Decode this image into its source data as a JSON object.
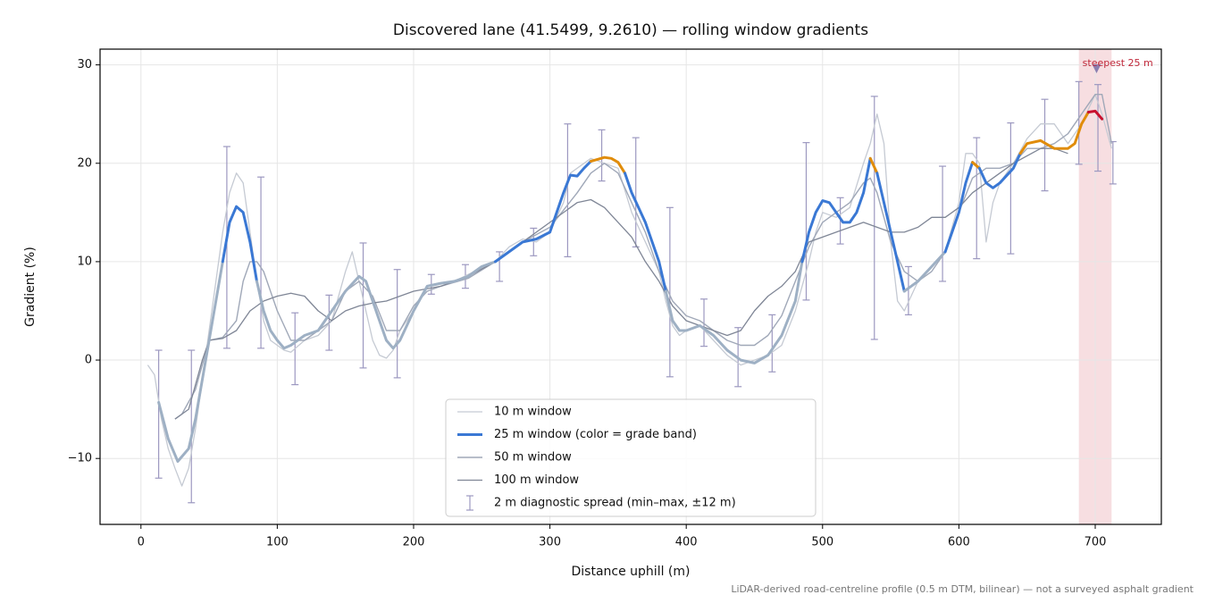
{
  "chart_data": {
    "type": "line",
    "title": "Discovered lane (41.5499, 9.2610) — rolling window gradients",
    "xlabel": "Distance uphill (m)",
    "ylabel": "Gradient (%)",
    "note": "LiDAR-derived road-centreline profile (0.5 m DTM, bilinear) — not a surveyed asphalt gradient",
    "xlim": [
      -30,
      748.5
    ],
    "ylim": [
      -16.7,
      31.6
    ],
    "xticks": [
      0,
      100,
      200,
      300,
      400,
      500,
      600,
      700
    ],
    "yticks": [
      {
        "value": -10,
        "label": "−10"
      },
      0,
      10,
      20,
      30
    ],
    "grid": true,
    "legend": "lower center",
    "series": [
      {
        "name": "10 m window",
        "color": "#c5cad3",
        "linewidth": 1.3,
        "x": [
          5,
          10,
          15,
          20,
          25,
          30,
          35,
          40,
          45,
          50,
          55,
          60,
          65,
          70,
          75,
          80,
          85,
          90,
          95,
          100,
          105,
          110,
          120,
          130,
          140,
          150,
          155,
          160,
          165,
          170,
          175,
          180,
          185,
          190,
          200,
          210,
          220,
          230,
          240,
          250,
          260,
          270,
          280,
          290,
          300,
          310,
          315,
          320,
          330,
          340,
          350,
          360,
          370,
          380,
          385,
          390,
          395,
          400,
          410,
          420,
          430,
          440,
          450,
          460,
          470,
          480,
          490,
          495,
          500,
          510,
          520,
          530,
          535,
          540,
          545,
          550,
          555,
          560,
          570,
          580,
          590,
          600,
          605,
          610,
          615,
          620,
          625,
          630,
          640,
          650,
          660,
          670,
          680,
          690,
          700,
          705,
          712
        ],
        "values": [
          -0.5,
          -1.5,
          -6,
          -9,
          -11,
          -12.8,
          -11,
          -7,
          -2,
          3,
          8,
          13,
          17,
          19,
          18,
          13,
          8,
          4,
          2,
          1.5,
          1,
          0.8,
          2,
          2.5,
          4,
          9,
          11,
          8,
          5,
          2,
          0.5,
          0.2,
          1,
          3,
          5,
          7.5,
          7.8,
          8,
          8.7,
          9.3,
          10,
          11.5,
          12.3,
          12,
          13,
          16,
          19,
          19.5,
          20.5,
          20,
          19.5,
          15,
          12,
          9,
          6,
          3.5,
          2.5,
          3,
          3.5,
          2,
          0.5,
          -0.5,
          0,
          0.5,
          1.5,
          5,
          10,
          13,
          15,
          14.5,
          15.5,
          20,
          22,
          25,
          22,
          12,
          6,
          5,
          8,
          9.5,
          11,
          16,
          21,
          21,
          20,
          12,
          16,
          18,
          20,
          22.5,
          24,
          24,
          22,
          24,
          27,
          25,
          21.5
        ]
      },
      {
        "name": "25 m window (color = grade band)",
        "color": "#3a78d4",
        "linewidth": 3,
        "bands": [
          {
            "below": 10,
            "color": "#9eb0c4"
          },
          {
            "below": 20,
            "color": "#3a78d4"
          },
          {
            "below": 25,
            "color": "#e08c0a"
          },
          {
            "color": "#c8102e"
          }
        ],
        "x": [
          13,
          20,
          27,
          35,
          40,
          50,
          60,
          65,
          70,
          75,
          80,
          85,
          90,
          95,
          100,
          105,
          110,
          120,
          130,
          140,
          150,
          160,
          165,
          170,
          175,
          180,
          185,
          190,
          195,
          200,
          210,
          220,
          230,
          240,
          250,
          260,
          270,
          280,
          290,
          300,
          305,
          310,
          315,
          320,
          325,
          330,
          340,
          345,
          350,
          355,
          360,
          370,
          380,
          385,
          390,
          395,
          400,
          410,
          420,
          430,
          440,
          450,
          460,
          470,
          480,
          485,
          490,
          495,
          500,
          505,
          510,
          515,
          520,
          525,
          530,
          535,
          540,
          545,
          550,
          555,
          560,
          570,
          580,
          590,
          600,
          605,
          610,
          615,
          620,
          625,
          630,
          640,
          645,
          650,
          660,
          670,
          680,
          685,
          690,
          695,
          700,
          705
        ],
        "values": [
          -4.3,
          -8,
          -10.3,
          -9,
          -6,
          2,
          10,
          14,
          15.6,
          15,
          12,
          8,
          5,
          3,
          2,
          1.2,
          1.5,
          2.5,
          3,
          5,
          7,
          8.5,
          8,
          6,
          4,
          2,
          1.2,
          2,
          3.5,
          5,
          7.5,
          7.8,
          8,
          8.5,
          9.5,
          10,
          11,
          12,
          12.3,
          13,
          15,
          17,
          18.8,
          18.7,
          19.5,
          20.2,
          20.6,
          20.5,
          20.1,
          19,
          17,
          14,
          10,
          7,
          4,
          3,
          3,
          3.5,
          2.5,
          1,
          0,
          -0.3,
          0.5,
          2.5,
          6,
          10,
          13,
          15,
          16.2,
          16,
          15,
          14,
          14,
          15,
          17,
          20.5,
          19,
          16,
          13,
          10,
          7,
          8,
          9.5,
          11,
          15,
          18,
          20.1,
          19.5,
          18,
          17.5,
          18,
          19.5,
          21,
          22,
          22.3,
          21.5,
          21.5,
          22,
          24,
          25.2,
          25.3,
          24.5
        ]
      },
      {
        "name": "50 m window",
        "color": "#a0a8b8",
        "linewidth": 1.4,
        "x": [
          25,
          30,
          40,
          50,
          60,
          70,
          75,
          80,
          85,
          90,
          100,
          110,
          120,
          130,
          140,
          150,
          160,
          170,
          180,
          190,
          200,
          210,
          220,
          240,
          260,
          280,
          300,
          320,
          330,
          340,
          350,
          360,
          370,
          380,
          390,
          400,
          410,
          420,
          430,
          440,
          450,
          460,
          470,
          480,
          490,
          500,
          510,
          520,
          530,
          535,
          540,
          550,
          560,
          570,
          580,
          590,
          600,
          610,
          620,
          630,
          640,
          650,
          660,
          670,
          680,
          690,
          700,
          705,
          712
        ],
        "values": [
          -6,
          -5.5,
          -3,
          2,
          2.3,
          4,
          8,
          10,
          10,
          9,
          5,
          2,
          2,
          3,
          4,
          7,
          8,
          6.5,
          3,
          3,
          5.5,
          7,
          7.5,
          8.3,
          10,
          12,
          13.5,
          17,
          19,
          20,
          19,
          16,
          13,
          9,
          6,
          4.5,
          4,
          3,
          2,
          1.5,
          1.5,
          2.5,
          4.5,
          8,
          11.5,
          14,
          15,
          16,
          18,
          18.5,
          17,
          12,
          9,
          8,
          9,
          11,
          15,
          18.5,
          19.5,
          19.5,
          20,
          21.5,
          21.5,
          22,
          23,
          25,
          27,
          27,
          22
        ]
      },
      {
        "name": "100 m window",
        "color": "#7f8696",
        "linewidth": 1.3,
        "x": [
          25,
          35,
          45,
          50,
          60,
          70,
          80,
          90,
          100,
          110,
          120,
          130,
          140,
          150,
          160,
          170,
          180,
          190,
          200,
          220,
          240,
          260,
          280,
          300,
          320,
          330,
          340,
          350,
          360,
          370,
          380,
          390,
          400,
          410,
          420,
          430,
          440,
          450,
          460,
          470,
          480,
          490,
          500,
          510,
          520,
          530,
          540,
          550,
          560,
          570,
          580,
          590,
          600,
          610,
          620,
          630,
          640,
          660,
          670,
          680
        ],
        "values": [
          -6,
          -5,
          0,
          2,
          2.2,
          3,
          5,
          6,
          6.5,
          6.8,
          6.5,
          5,
          4,
          5,
          5.5,
          5.8,
          6,
          6.5,
          7,
          7.5,
          8.5,
          10,
          12,
          14,
          16,
          16.3,
          15.5,
          14,
          12.5,
          10,
          8,
          5.5,
          4,
          3.5,
          3,
          2.5,
          3,
          5,
          6.5,
          7.5,
          9,
          12,
          12.5,
          13,
          13.5,
          14,
          13.5,
          13,
          13,
          13.5,
          14.5,
          14.5,
          15.5,
          17,
          18,
          19,
          20,
          21.5,
          21.5,
          21
        ]
      }
    ],
    "errorbars": {
      "name": "2 m diagnostic spread (min–max, ±12 m)",
      "color": "#9c98c0",
      "x": [
        13,
        37,
        63,
        88,
        113,
        138,
        163,
        188,
        213,
        238,
        263,
        288,
        313,
        338,
        363,
        388,
        413,
        438,
        463,
        488,
        513,
        538,
        563,
        588,
        613,
        638,
        663,
        688,
        702,
        713
      ],
      "low": [
        -12,
        -14.5,
        1.2,
        1.2,
        -2.5,
        1,
        -0.8,
        -1.8,
        6.7,
        7.3,
        8,
        10.6,
        10.5,
        18.2,
        11.5,
        -1.7,
        1.4,
        -2.7,
        -1.2,
        6.1,
        11.8,
        2.1,
        4.6,
        8,
        10.3,
        10.8,
        17.2,
        19.9,
        19.2,
        17.9
      ],
      "high": [
        1,
        1,
        21.7,
        18.6,
        4.8,
        6.6,
        11.9,
        9.2,
        8.7,
        9.7,
        11,
        13.4,
        24,
        23.4,
        22.6,
        15.5,
        6.2,
        3.3,
        4.6,
        22.1,
        16.5,
        26.8,
        9.5,
        19.7,
        22.6,
        24.1,
        26.5,
        28.3,
        28,
        22.2
      ]
    },
    "highlight": {
      "xlim": [
        688,
        712
      ],
      "label": "steepest 25 m",
      "color": "#e9a0a8",
      "label_color": "#c0283a",
      "marker": {
        "x": 701,
        "y": 29.6,
        "color": "#8a7fb0"
      }
    }
  }
}
